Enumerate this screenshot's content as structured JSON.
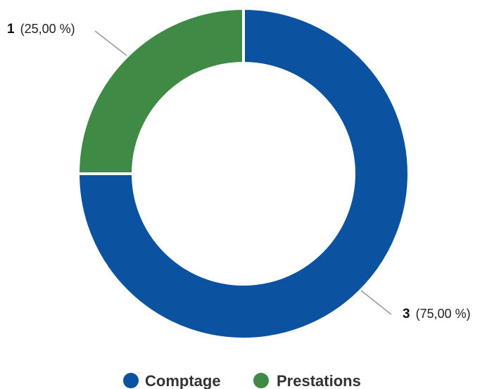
{
  "chart_data": {
    "type": "pie",
    "variant": "donut",
    "categories": [
      "Comptage",
      "Prestations"
    ],
    "values": [
      3,
      1
    ],
    "percent_labels": [
      "(75,00 %)",
      "(25,00 %)"
    ],
    "colors": [
      "#0b52a0",
      "#3f8a45"
    ],
    "legend": {
      "placement": "bottom",
      "entries": [
        "Comptage",
        "Prestations"
      ]
    },
    "title": "",
    "xlabel": "",
    "ylabel": ""
  }
}
